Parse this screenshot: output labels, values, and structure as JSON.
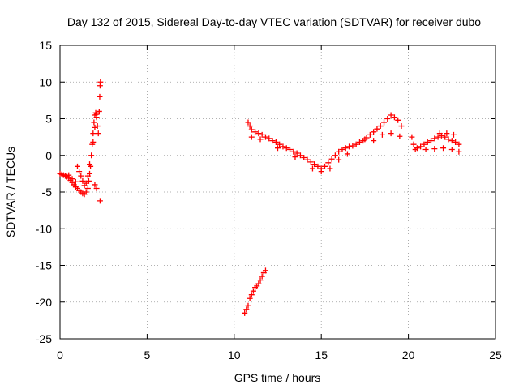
{
  "chart_data": {
    "type": "scatter",
    "title": "Day 132 of 2015, Sidereal Day-to-day VTEC variation (SDTVAR) for receiver dubo",
    "xlabel": "GPS time / hours",
    "ylabel": "SDTVAR / TECUs",
    "xlim": [
      0,
      25
    ],
    "ylim": [
      -25,
      15
    ],
    "xticks": [
      0,
      5,
      10,
      15,
      20,
      25
    ],
    "yticks": [
      -25,
      -20,
      -15,
      -10,
      -5,
      0,
      5,
      10,
      15
    ],
    "grid": true,
    "marker": "+",
    "color": "#ff0000",
    "series": [
      {
        "points": [
          [
            0.0,
            -2.5
          ],
          [
            0.1,
            -2.6
          ],
          [
            0.2,
            -2.7
          ],
          [
            0.3,
            -2.8
          ],
          [
            0.4,
            -2.9
          ],
          [
            0.5,
            -3.1
          ],
          [
            0.6,
            -3.4
          ],
          [
            0.7,
            -3.7
          ],
          [
            0.8,
            -4.0
          ],
          [
            0.9,
            -4.3
          ],
          [
            1.0,
            -4.5
          ],
          [
            1.1,
            -4.8
          ],
          [
            1.2,
            -5.0
          ],
          [
            1.3,
            -5.2
          ],
          [
            1.4,
            -5.3
          ],
          [
            1.5,
            -5.0
          ],
          [
            1.6,
            -4.5
          ],
          [
            1.65,
            -3.5
          ],
          [
            1.7,
            -2.5
          ],
          [
            1.75,
            -1.5
          ],
          [
            1.8,
            0.0
          ],
          [
            1.85,
            1.5
          ],
          [
            1.9,
            3.0
          ],
          [
            1.95,
            4.5
          ],
          [
            2.0,
            5.5
          ],
          [
            2.05,
            5.8
          ],
          [
            2.1,
            5.2
          ],
          [
            2.15,
            4.0
          ],
          [
            2.2,
            3.0
          ],
          [
            2.25,
            6.0
          ],
          [
            2.28,
            8.0
          ],
          [
            2.3,
            9.5
          ],
          [
            2.32,
            10.0
          ],
          [
            2.3,
            -6.2
          ],
          [
            2.1,
            -4.5
          ],
          [
            2.0,
            -4.0
          ],
          [
            1.0,
            -1.5
          ],
          [
            1.1,
            -2.2
          ],
          [
            1.2,
            -2.8
          ],
          [
            1.3,
            -3.5
          ],
          [
            1.4,
            -4.1
          ],
          [
            0.9,
            -3.6
          ],
          [
            0.7,
            -3.2
          ],
          [
            0.5,
            -2.7
          ],
          [
            1.5,
            -3.8
          ],
          [
            1.6,
            -2.8
          ],
          [
            1.7,
            -1.2
          ],
          [
            1.9,
            1.8
          ],
          [
            2.0,
            3.8
          ],
          [
            2.1,
            5.6
          ]
        ]
      },
      {
        "points": [
          [
            10.8,
            4.5
          ],
          [
            10.9,
            4.0
          ],
          [
            11.0,
            3.5
          ],
          [
            11.2,
            3.2
          ],
          [
            11.4,
            3.0
          ],
          [
            11.6,
            2.8
          ],
          [
            11.8,
            2.5
          ],
          [
            12.0,
            2.3
          ],
          [
            12.2,
            2.0
          ],
          [
            12.4,
            1.8
          ],
          [
            12.6,
            1.5
          ],
          [
            12.8,
            1.2
          ],
          [
            13.0,
            1.0
          ],
          [
            13.2,
            0.8
          ],
          [
            13.4,
            0.5
          ],
          [
            13.6,
            0.3
          ],
          [
            13.8,
            0.0
          ],
          [
            14.0,
            -0.3
          ],
          [
            14.2,
            -0.6
          ],
          [
            14.4,
            -0.9
          ],
          [
            14.6,
            -1.2
          ],
          [
            14.8,
            -1.5
          ],
          [
            15.0,
            -1.8
          ],
          [
            15.2,
            -1.5
          ],
          [
            15.4,
            -1.0
          ],
          [
            15.6,
            -0.5
          ],
          [
            15.8,
            0.0
          ],
          [
            16.0,
            0.5
          ],
          [
            16.2,
            0.8
          ],
          [
            16.4,
            1.0
          ],
          [
            16.6,
            1.2
          ],
          [
            16.8,
            1.3
          ],
          [
            17.0,
            1.5
          ],
          [
            17.2,
            1.8
          ],
          [
            17.4,
            2.0
          ],
          [
            17.6,
            2.4
          ],
          [
            17.8,
            2.8
          ],
          [
            18.0,
            3.2
          ],
          [
            18.2,
            3.6
          ],
          [
            18.4,
            4.0
          ],
          [
            18.6,
            4.5
          ],
          [
            18.8,
            5.0
          ],
          [
            19.0,
            5.5
          ],
          [
            19.2,
            5.2
          ],
          [
            19.4,
            4.8
          ],
          [
            19.6,
            4.0
          ],
          [
            11.0,
            2.5
          ],
          [
            11.5,
            2.2
          ],
          [
            12.5,
            1.0
          ],
          [
            13.5,
            -0.2
          ],
          [
            14.5,
            -1.8
          ],
          [
            15.0,
            -2.2
          ],
          [
            15.5,
            -1.8
          ],
          [
            16.0,
            -0.6
          ],
          [
            16.5,
            0.2
          ],
          [
            17.5,
            2.2
          ],
          [
            18.5,
            2.8
          ],
          [
            19.0,
            3.0
          ],
          [
            19.5,
            2.6
          ],
          [
            18.0,
            2.0
          ]
        ]
      },
      {
        "points": [
          [
            20.2,
            2.5
          ],
          [
            20.3,
            1.5
          ],
          [
            20.4,
            0.8
          ],
          [
            20.5,
            1.0
          ],
          [
            20.7,
            1.2
          ],
          [
            20.9,
            1.5
          ],
          [
            21.1,
            1.8
          ],
          [
            21.3,
            2.0
          ],
          [
            21.5,
            2.3
          ],
          [
            21.7,
            2.5
          ],
          [
            21.9,
            2.7
          ],
          [
            22.1,
            2.5
          ],
          [
            22.3,
            2.2
          ],
          [
            22.5,
            2.0
          ],
          [
            22.7,
            1.8
          ],
          [
            22.9,
            1.5
          ],
          [
            21.0,
            0.8
          ],
          [
            21.5,
            0.9
          ],
          [
            22.0,
            1.0
          ],
          [
            22.5,
            0.8
          ],
          [
            22.9,
            0.5
          ],
          [
            21.8,
            3.0
          ],
          [
            22.2,
            3.0
          ],
          [
            22.6,
            2.8
          ]
        ]
      },
      {
        "points": [
          [
            10.6,
            -21.5
          ],
          [
            10.7,
            -21.0
          ],
          [
            10.8,
            -20.5
          ],
          [
            10.9,
            -19.5
          ],
          [
            11.0,
            -19.0
          ],
          [
            11.1,
            -18.5
          ],
          [
            11.2,
            -18.0
          ],
          [
            11.3,
            -17.8
          ],
          [
            11.4,
            -17.5
          ],
          [
            11.5,
            -17.0
          ],
          [
            11.6,
            -16.5
          ],
          [
            11.7,
            -16.0
          ],
          [
            11.8,
            -15.7
          ]
        ]
      }
    ]
  }
}
